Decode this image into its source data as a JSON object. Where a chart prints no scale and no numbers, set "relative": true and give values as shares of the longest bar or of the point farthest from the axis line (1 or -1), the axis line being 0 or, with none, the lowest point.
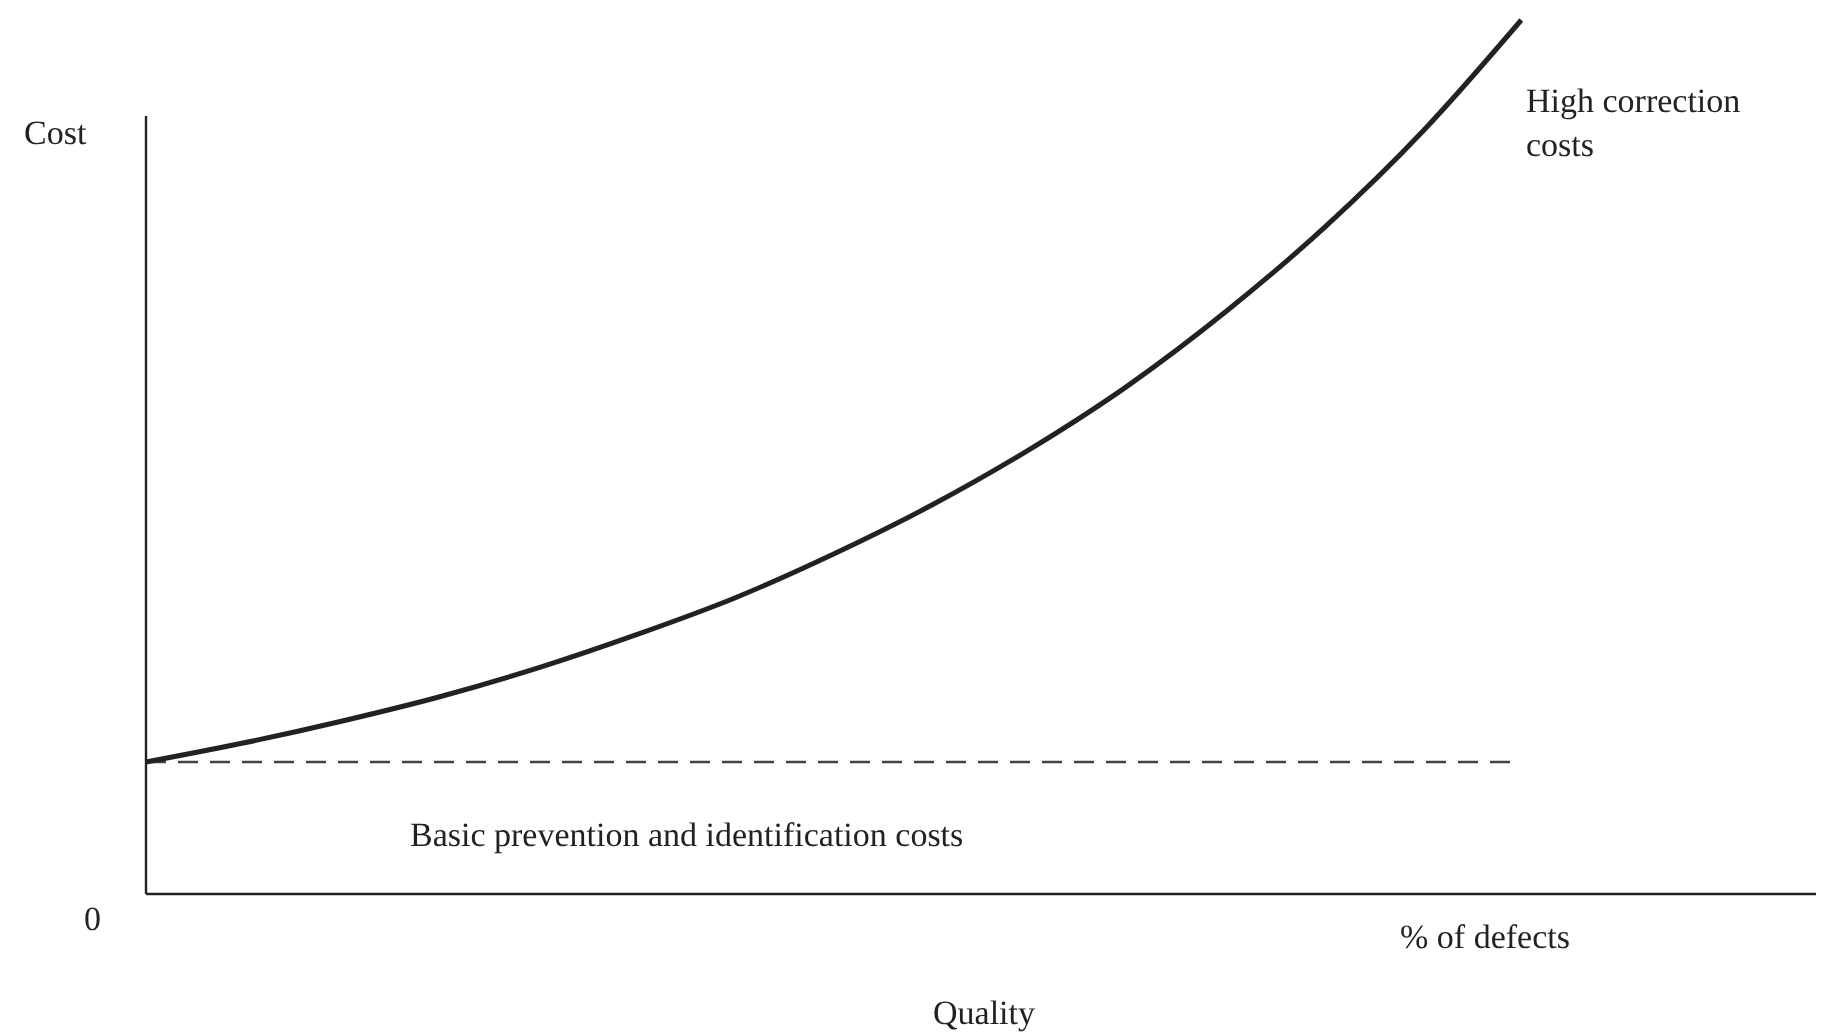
{
  "chart_data": {
    "type": "line",
    "relative": true,
    "xlabel": "Quality",
    "ylabel": "Cost",
    "categories": [
      null,
      null,
      null,
      null,
      null,
      null,
      null,
      null,
      null,
      null,
      null,
      null,
      null,
      null,
      null,
      null,
      null,
      null
    ],
    "series": [
      {
        "color": "#222222",
        "values": [
          0.151,
          0.173,
          0.198,
          0.226,
          0.259,
          0.297,
          0.339,
          0.389,
          0.445,
          0.509,
          0.582,
          0.667,
          0.763,
          0.873,
          1.0,
          null,
          null,
          null
        ]
      }
    ],
    "ref_lines": [
      {
        "axis": "y",
        "value": 0.151,
        "label": "Basic prevention and identification costs",
        "color": "#444444",
        "line_style": "dashed"
      }
    ],
    "annotations": [
      "High correction costs",
      "% of defects",
      "0"
    ],
    "marker": "none",
    "line_style": "solid"
  }
}
